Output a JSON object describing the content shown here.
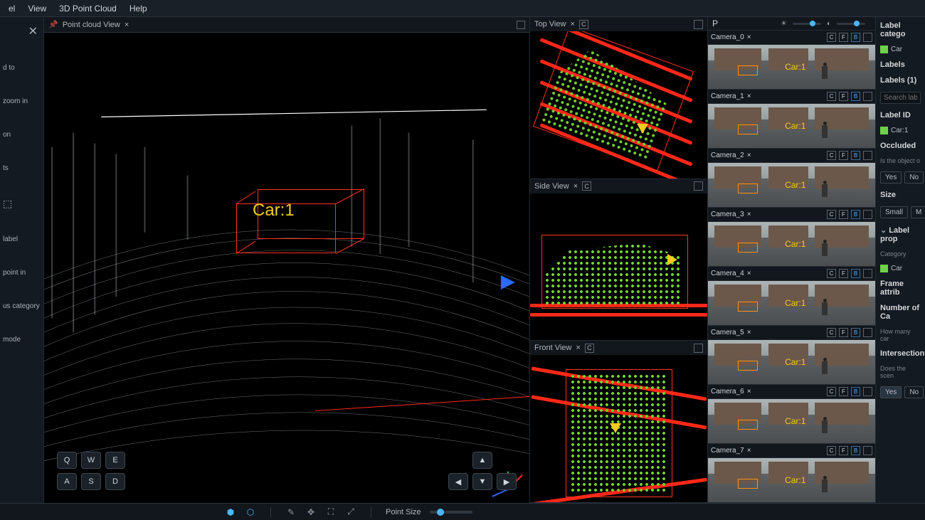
{
  "menu": {
    "items": [
      "el",
      "View",
      "3D Point Cloud",
      "Help"
    ]
  },
  "leftbar": {
    "close": "✕",
    "items": [
      "d to",
      "zoom in",
      "on",
      "ts",
      "label",
      "point in",
      "us category",
      "mode"
    ]
  },
  "tabs": {
    "main": "Point cloud View"
  },
  "ortho": {
    "top": "Top View",
    "side": "Side View",
    "front": "Front View"
  },
  "annotation": {
    "selected_label": "Car:1"
  },
  "cameras": {
    "list": [
      "Camera_0",
      "Camera_1",
      "Camera_2",
      "Camera_3",
      "Camera_4",
      "Camera_5",
      "Camera_6",
      "Camera_7"
    ],
    "btn_c": "C",
    "btn_f": "F",
    "btn_b": "B",
    "label": "Car:1"
  },
  "topctrl": {
    "p": "P"
  },
  "right": {
    "section_cat": "Label catego",
    "car": "Car",
    "section_labels": "Labels",
    "labels_count": "Labels (1)",
    "search_ph": "Search labels",
    "label_id": "Label ID",
    "car1": "Car:1",
    "occluded": "Occluded",
    "occluded_sub": "Is the object o",
    "yes": "Yes",
    "no": "No",
    "size": "Size",
    "small": "Small",
    "med": "M",
    "label_prop": "Label prop",
    "category": "Category",
    "frame_attr": "Frame attrib",
    "num_cars": "Number of Ca",
    "num_cars_sub": "How many car",
    "intersection": "Intersection?",
    "intersection_sub": "Does the scen"
  },
  "keys": {
    "q": "Q",
    "w": "W",
    "e": "E",
    "a": "A",
    "s": "S",
    "d": "D"
  },
  "arrows": {
    "up": "▲",
    "left": "◀",
    "down": "▼",
    "right": "▶"
  },
  "bottom": {
    "point_size": "Point Size"
  },
  "colors": {
    "accent": "#4ab7ff",
    "car_green": "#6fd14a",
    "label_yellow": "#f0cc20",
    "bbox_red": "#ff3020"
  }
}
